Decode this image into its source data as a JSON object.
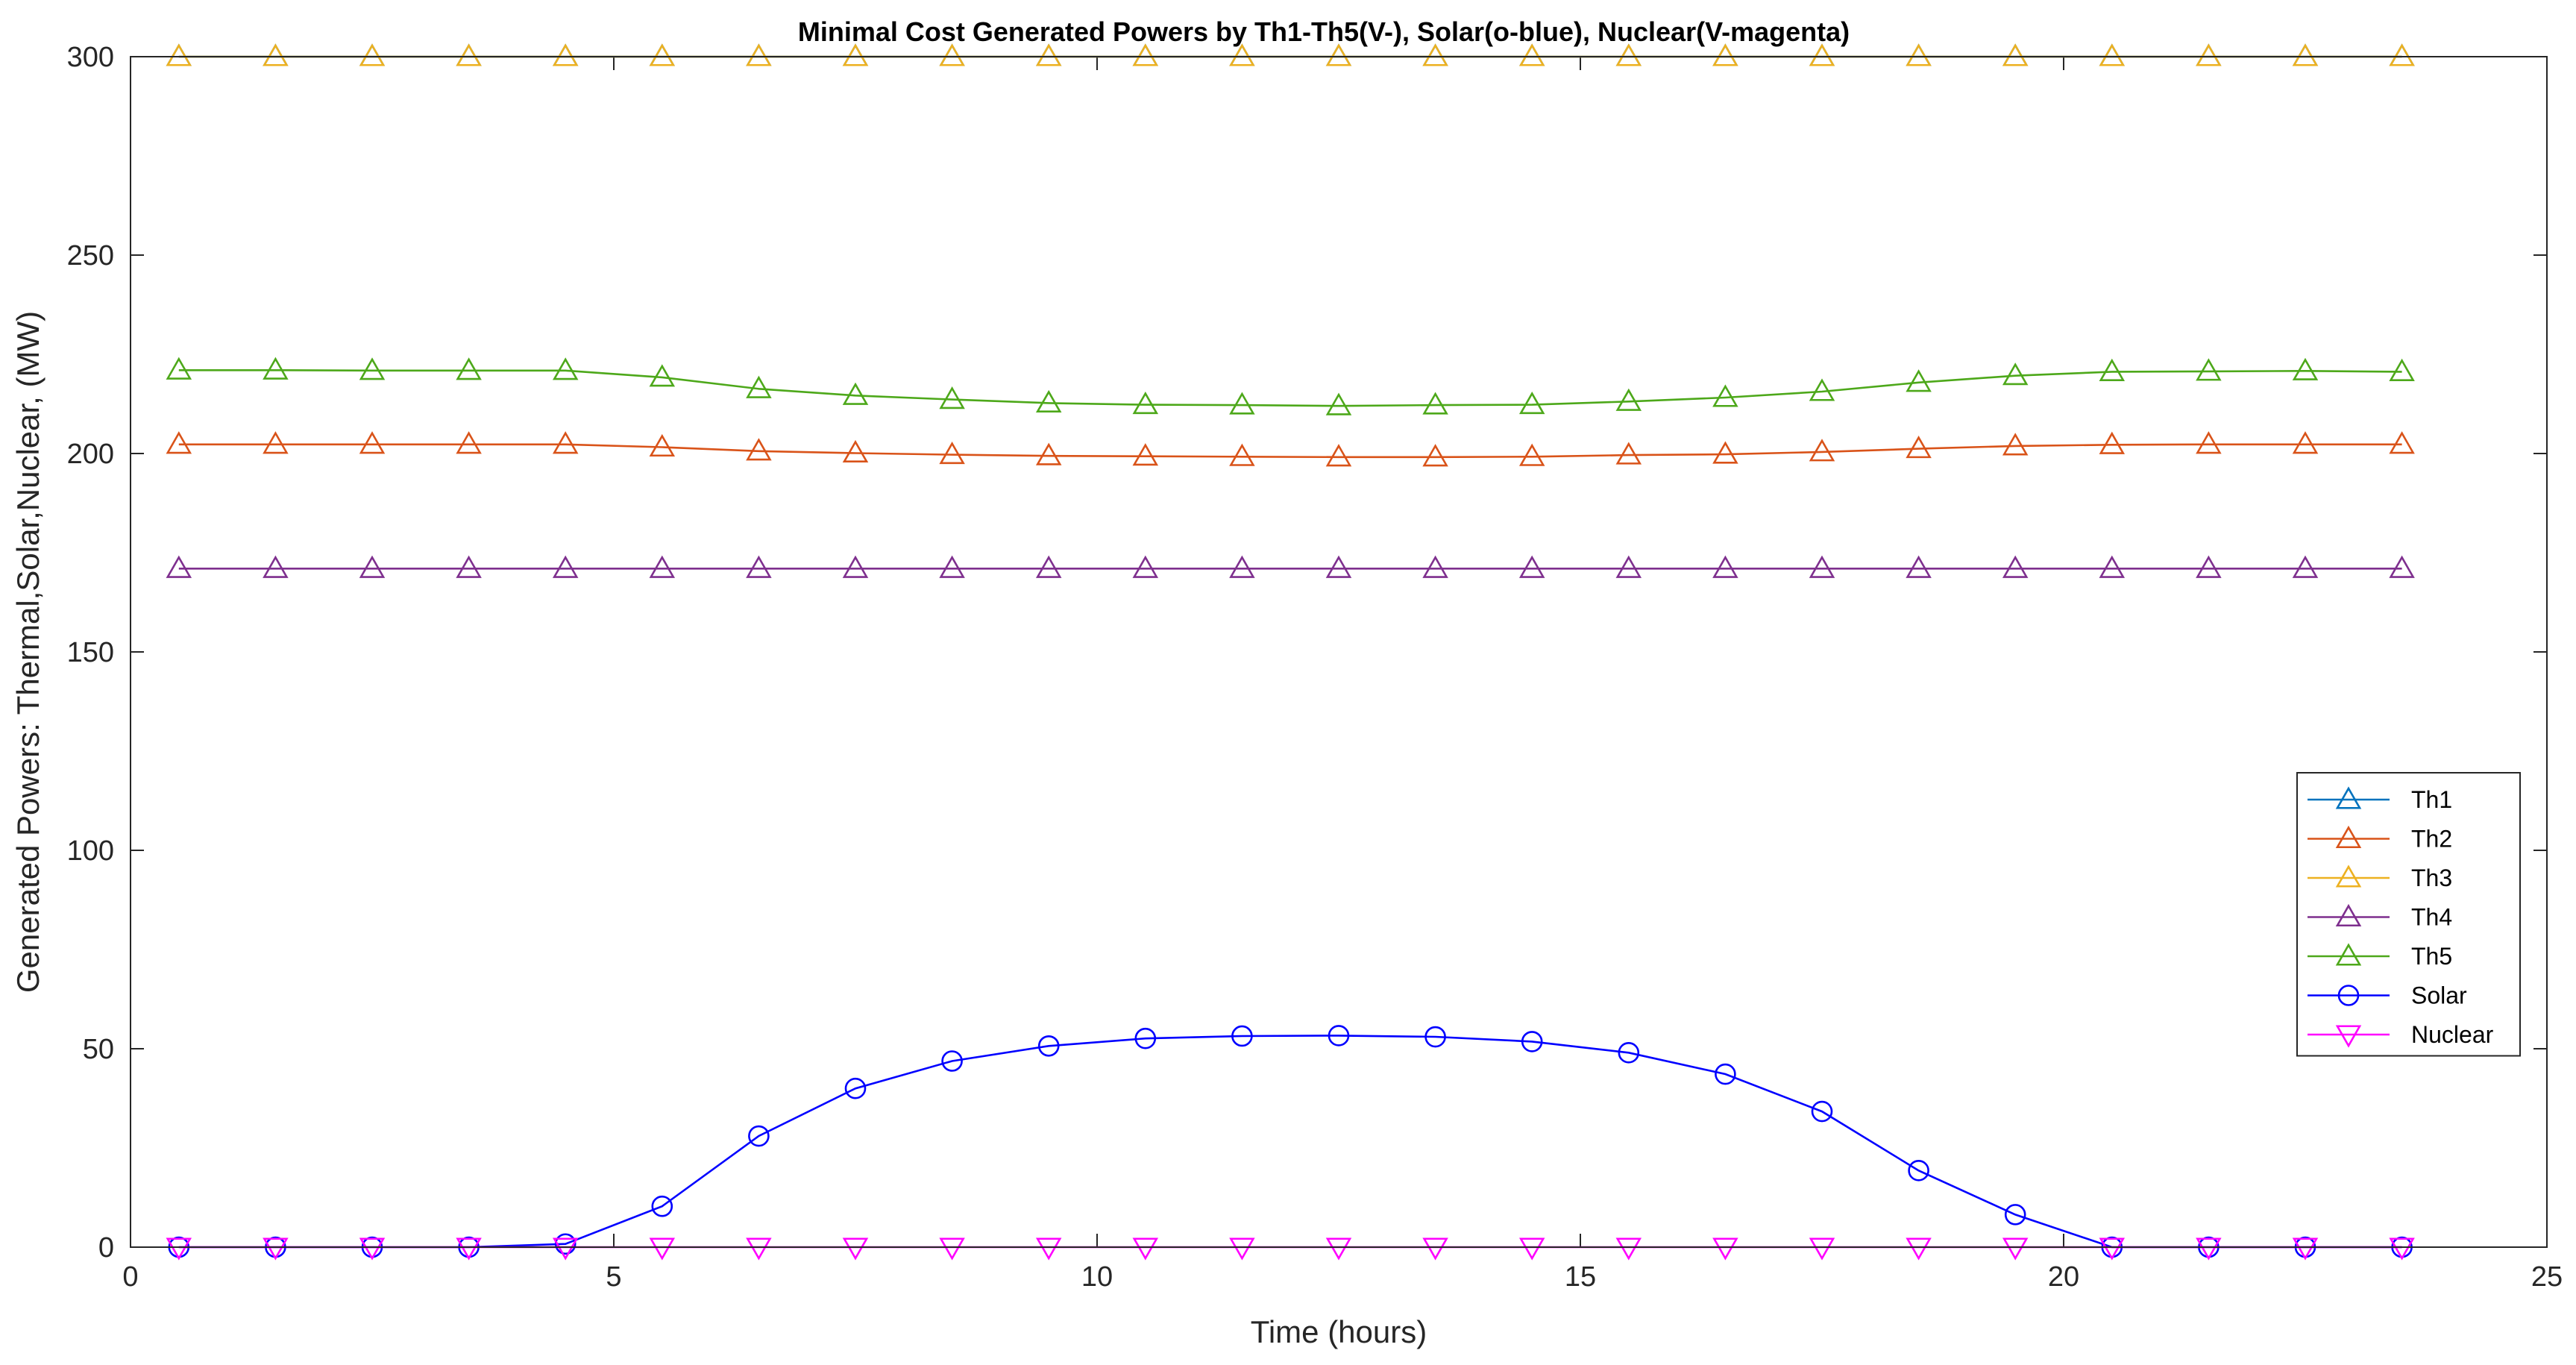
{
  "chart_data": {
    "type": "line",
    "title": "Minimal Cost Generated Powers by Th1-Th5(V-), Solar(o-blue), Nuclear(V-magenta)",
    "xlabel": "Time (hours)",
    "ylabel": "Generated Powers: Thermal,Solar,Nuclear, (MW)",
    "xlim": [
      0,
      25
    ],
    "ylim": [
      0,
      300
    ],
    "xticks": [
      0,
      5,
      10,
      15,
      20,
      25
    ],
    "yticks": [
      0,
      50,
      100,
      150,
      200,
      250,
      300
    ],
    "grid": false,
    "legend_position": "right",
    "x": [
      0.5,
      1.5,
      2.5,
      3.5,
      4.5,
      5.5,
      6.5,
      7.5,
      8.5,
      9.5,
      10.5,
      11.5,
      12.5,
      13.5,
      14.5,
      15.5,
      16.5,
      17.5,
      18.5,
      19.5,
      20.5,
      21.5,
      22.5,
      23.5
    ],
    "series": [
      {
        "name": "Th1",
        "color": "#0072BD",
        "marker": "triangle-up",
        "values": [
          300,
          300,
          300,
          300,
          300,
          300,
          300,
          300,
          300,
          300,
          300,
          300,
          300,
          300,
          300,
          300,
          300,
          300,
          300,
          300,
          300,
          300,
          300,
          300
        ]
      },
      {
        "name": "Th2",
        "color": "#D95319",
        "marker": "triangle-up",
        "values": [
          202.3,
          202.3,
          202.3,
          202.3,
          202.3,
          201.6,
          200.6,
          200.1,
          199.7,
          199.4,
          199.3,
          199.2,
          199.1,
          199.1,
          199.2,
          199.6,
          199.8,
          200.4,
          201.2,
          201.9,
          202.2,
          202.3,
          202.3,
          202.3
        ]
      },
      {
        "name": "Th3",
        "color": "#EDB120",
        "marker": "triangle-up",
        "values": [
          300,
          300,
          300,
          300,
          300,
          300,
          300,
          300,
          300,
          300,
          300,
          300,
          300,
          300,
          300,
          300,
          300,
          300,
          300,
          300,
          300,
          300,
          300,
          300
        ]
      },
      {
        "name": "Th4",
        "color": "#7E2F8E",
        "marker": "triangle-up",
        "values": [
          171,
          171,
          171,
          171,
          171,
          171,
          171,
          171,
          171,
          171,
          171,
          171,
          171,
          171,
          171,
          171,
          171,
          171,
          171,
          171,
          171,
          171,
          171,
          171
        ]
      },
      {
        "name": "Th5",
        "color": "#4DA81A",
        "marker": "triangle-up",
        "values": [
          221,
          221,
          220.9,
          220.9,
          220.9,
          219.2,
          216.3,
          214.6,
          213.6,
          212.7,
          212.3,
          212.2,
          212.0,
          212.2,
          212.3,
          213.1,
          214.1,
          215.6,
          217.9,
          219.6,
          220.6,
          220.7,
          220.8,
          220.6
        ]
      },
      {
        "name": "Solar",
        "color": "#0000FF",
        "marker": "circle",
        "values": [
          0,
          0,
          0,
          0,
          0.8,
          10.3,
          28.0,
          40.0,
          46.9,
          50.7,
          52.6,
          53.2,
          53.3,
          53.0,
          51.8,
          49.0,
          43.6,
          34.2,
          19.3,
          8.2,
          0,
          0,
          0,
          0
        ]
      },
      {
        "name": "Nuclear",
        "color": "#FF00FF",
        "marker": "triangle-down",
        "values": [
          0,
          0,
          0,
          0,
          0,
          0,
          0,
          0,
          0,
          0,
          0,
          0,
          0,
          0,
          0,
          0,
          0,
          0,
          0,
          0,
          0,
          0,
          0,
          0
        ]
      }
    ]
  }
}
